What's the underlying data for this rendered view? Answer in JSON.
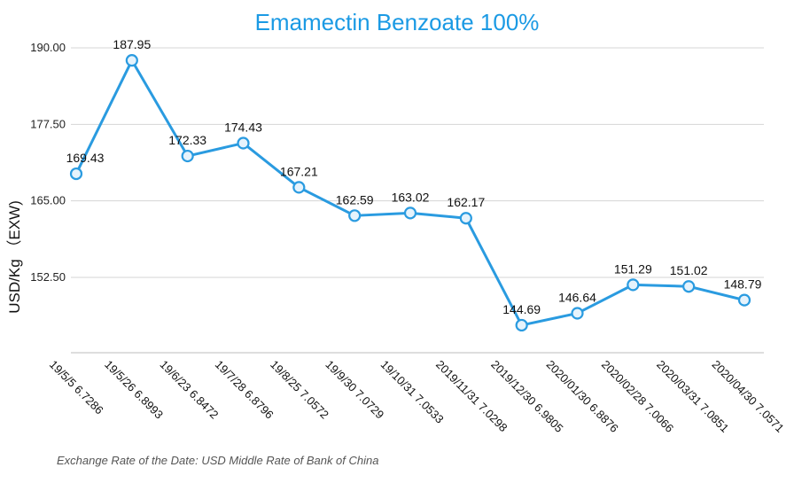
{
  "chart_data": {
    "type": "line",
    "title": "Emamectin Benzoate 100%",
    "ylabel": "USD/Kg （EXW)",
    "xlabel": "",
    "categories": [
      "19/5/5 6.7286",
      "19/5/26 6.8993",
      "19/6/23 6.8472",
      "19/7/28 6.8796",
      "19/8/25 7.0572",
      "19/9/30 7.0729",
      "19/10/31 7.0533",
      "2019/11/31 7.0298",
      "2019/12/30 6.9805",
      "2020/01/30 6.8876",
      "2020/02/28 7.0066",
      "2020/03/31 7.0851",
      "2020/04/30 7.0571"
    ],
    "values": [
      169.43,
      187.95,
      172.33,
      174.43,
      167.21,
      162.59,
      163.02,
      162.17,
      144.69,
      146.64,
      151.29,
      151.02,
      148.79
    ],
    "data_labels": [
      "169.43",
      "187.95",
      "172.33",
      "174.43",
      "167.21",
      "162.59",
      "163.02",
      "162.17",
      "144.69",
      "146.64",
      "151.29",
      "151.02",
      "148.79"
    ],
    "y_ticks": [
      "190.00",
      "177.50",
      "165.00",
      "152.50"
    ],
    "y_tick_values": [
      190,
      177.5,
      165,
      152.5
    ],
    "ylim": [
      140,
      192.5
    ],
    "grid": true,
    "legend": "none",
    "line_color": "#2a9be0",
    "marker_fill": "#e6f3fc",
    "footnote": "Exchange Rate of the Date: USD Middle Rate of Bank of China"
  }
}
